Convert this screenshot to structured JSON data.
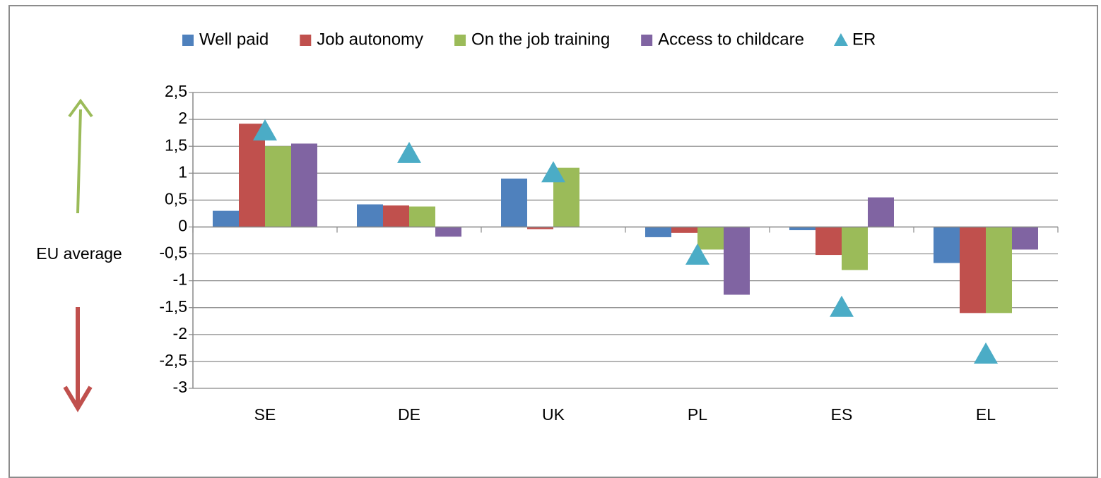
{
  "chart_data": {
    "type": "bar",
    "y_label": "EU average",
    "categories": [
      "SE",
      "DE",
      "UK",
      "PL",
      "ES",
      "EL"
    ],
    "series": [
      {
        "name": "Well paid",
        "color": "#4f81bd",
        "values": [
          0.3,
          0.42,
          0.9,
          -0.19,
          -0.06,
          -0.67
        ]
      },
      {
        "name": "Job autonomy",
        "color": "#c0504d",
        "values": [
          1.92,
          0.4,
          -0.04,
          -0.11,
          -0.52,
          -1.6
        ]
      },
      {
        "name": "On the job training",
        "color": "#9bbb59",
        "values": [
          1.5,
          0.38,
          1.1,
          -0.42,
          -0.8,
          -1.6
        ]
      },
      {
        "name": "Access to childcare",
        "color": "#8064a2",
        "values": [
          1.55,
          -0.18,
          null,
          -1.26,
          0.55,
          -0.42
        ]
      },
      {
        "name": "ER",
        "color": "#4bacc6",
        "marker": "triangle",
        "values": [
          1.78,
          1.36,
          1.0,
          -0.53,
          -1.5,
          -2.37
        ]
      }
    ],
    "ylim": [
      -3,
      2.5
    ],
    "yticks": [
      -3,
      {
        "value": -2.5,
        "label": "-2,5"
      },
      -2,
      {
        "value": -1.5,
        "label": "-1,5"
      },
      -1,
      {
        "value": -0.5,
        "label": "-0,5"
      },
      0,
      {
        "value": 0.5,
        "label": "0,5"
      },
      1,
      {
        "value": 1.5,
        "label": "1,5"
      },
      2,
      {
        "value": 2.5,
        "label": "2,5"
      }
    ],
    "grid": true
  }
}
